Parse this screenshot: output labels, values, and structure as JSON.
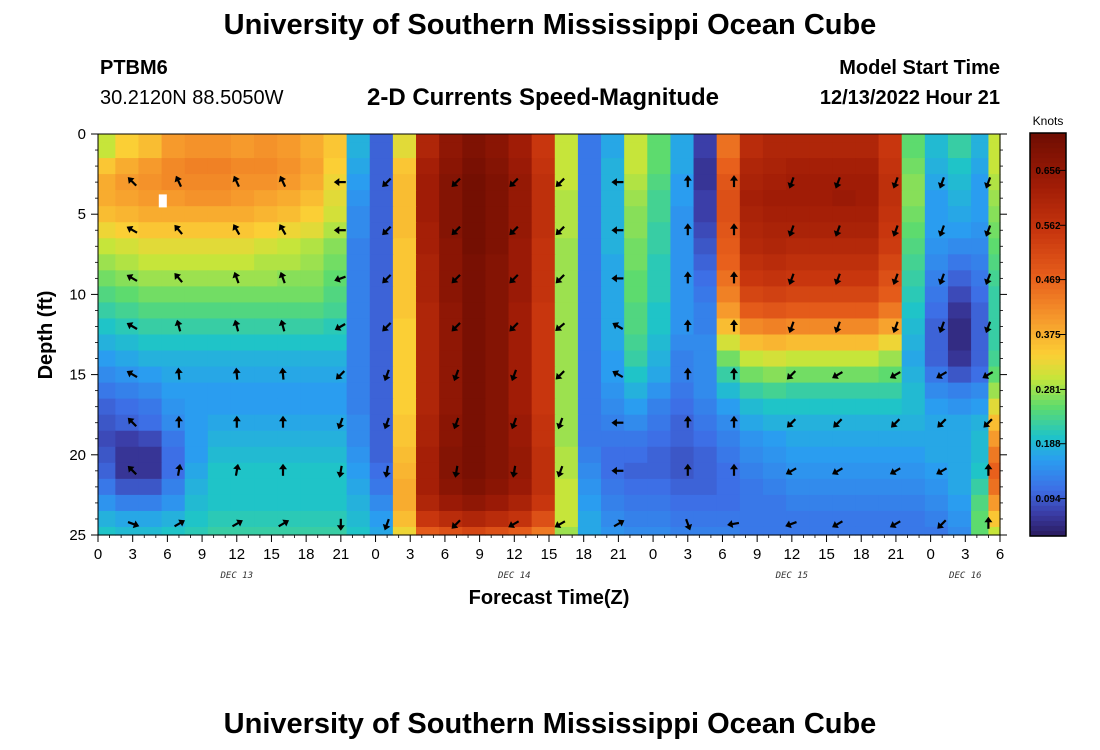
{
  "header": {
    "title": "University of Southern Mississippi Ocean Cube",
    "station_id": "PTBM6",
    "coordinates": "30.2120N  88.5050W",
    "subtitle": "2-D Currents Speed-Magnitude",
    "model_start_label": "Model Start Time",
    "model_start_value": "12/13/2022 Hour 21"
  },
  "footer": {
    "title": "University of Southern Mississippi Ocean Cube"
  },
  "colors": {
    "arrow": "#000000",
    "marker": "#ffffff"
  },
  "chart_data": {
    "type": "heatmap",
    "title": "2-D Currents Speed-Magnitude",
    "xlabel": "Forecast Time(Z)",
    "ylabel": "Depth (ft)",
    "x_ticks": [
      "0",
      "3",
      "6",
      "9",
      "12",
      "15",
      "18",
      "21",
      "0",
      "3",
      "6",
      "9",
      "12",
      "15",
      "18",
      "21",
      "0",
      "3",
      "6",
      "9",
      "12",
      "15",
      "18",
      "21",
      "0",
      "3",
      "6"
    ],
    "x_range_hours": [
      0,
      78
    ],
    "y_ticks": [
      "0",
      "5",
      "10",
      "15",
      "20",
      "25"
    ],
    "ylim_ft": [
      0,
      25
    ],
    "date_labels": [
      {
        "text": "DEC 13",
        "hour": 12
      },
      {
        "text": "DEC 14",
        "hour": 36
      },
      {
        "text": "DEC 15",
        "hour": 60
      },
      {
        "text": "DEC 16",
        "hour": 75
      }
    ],
    "colorbar": {
      "unit": "Knots",
      "ticks": [
        "0.656",
        "0.562",
        "0.469",
        "0.375",
        "0.281",
        "0.188",
        "0.094"
      ],
      "tick_values": [
        0.656,
        0.562,
        0.469,
        0.375,
        0.281,
        0.188,
        0.094
      ],
      "range": [
        0.03,
        0.72
      ]
    },
    "column_hours": [
      0.5,
      2.5,
      4.5,
      6.5,
      8.5,
      10.5,
      12.5,
      14.5,
      16.5,
      18.5,
      20.5,
      22.5,
      24.5,
      26.5,
      28.5,
      30.5,
      32.5,
      34.5,
      36.5,
      38.5,
      40.5,
      42.5,
      44.5,
      46.5,
      48.5,
      50.5,
      52.5,
      54.5,
      56.5,
      58.5,
      60.5,
      62.5,
      64.5,
      66.5,
      68.5,
      70.5,
      72.5,
      74.5,
      76.5,
      77.5
    ],
    "depth_ft": [
      0,
      1,
      2,
      3,
      4,
      5,
      6,
      7,
      8,
      9,
      10,
      11,
      12,
      13,
      14,
      15,
      16,
      17,
      18,
      19,
      20,
      21,
      22,
      23,
      24,
      25
    ],
    "speed_knots": [
      [
        0.3,
        0.34,
        0.36,
        0.4,
        0.41,
        0.41,
        0.4,
        0.41,
        0.4,
        0.38,
        0.35,
        0.18,
        0.1,
        0.32,
        0.6,
        0.66,
        0.69,
        0.67,
        0.63,
        0.55,
        0.3,
        0.12,
        0.17,
        0.3,
        0.25,
        0.17,
        0.07,
        0.45,
        0.58,
        0.6,
        0.6,
        0.6,
        0.6,
        0.6,
        0.55,
        0.25,
        0.19,
        0.22,
        0.18,
        0.3
      ],
      [
        0.3,
        0.34,
        0.36,
        0.4,
        0.41,
        0.41,
        0.4,
        0.41,
        0.4,
        0.38,
        0.35,
        0.18,
        0.1,
        0.32,
        0.6,
        0.66,
        0.69,
        0.67,
        0.63,
        0.55,
        0.3,
        0.12,
        0.17,
        0.3,
        0.25,
        0.17,
        0.07,
        0.45,
        0.58,
        0.6,
        0.6,
        0.6,
        0.6,
        0.6,
        0.55,
        0.25,
        0.19,
        0.22,
        0.18,
        0.3
      ],
      [
        0.35,
        0.38,
        0.4,
        0.42,
        0.43,
        0.43,
        0.42,
        0.42,
        0.41,
        0.39,
        0.34,
        0.17,
        0.1,
        0.35,
        0.62,
        0.67,
        0.7,
        0.68,
        0.64,
        0.56,
        0.3,
        0.12,
        0.18,
        0.3,
        0.25,
        0.17,
        0.06,
        0.47,
        0.6,
        0.61,
        0.62,
        0.62,
        0.62,
        0.62,
        0.56,
        0.26,
        0.18,
        0.2,
        0.17,
        0.3
      ],
      [
        0.38,
        0.4,
        0.41,
        0.42,
        0.42,
        0.42,
        0.41,
        0.41,
        0.4,
        0.38,
        0.33,
        0.16,
        0.1,
        0.36,
        0.63,
        0.68,
        0.71,
        0.69,
        0.65,
        0.57,
        0.3,
        0.12,
        0.18,
        0.29,
        0.24,
        0.16,
        0.06,
        0.49,
        0.61,
        0.62,
        0.63,
        0.63,
        0.63,
        0.63,
        0.57,
        0.27,
        0.17,
        0.19,
        0.16,
        0.29
      ],
      [
        0.38,
        0.39,
        0.4,
        0.4,
        0.41,
        0.41,
        0.4,
        0.39,
        0.38,
        0.36,
        0.32,
        0.15,
        0.1,
        0.36,
        0.63,
        0.68,
        0.71,
        0.69,
        0.65,
        0.57,
        0.29,
        0.12,
        0.18,
        0.28,
        0.23,
        0.16,
        0.07,
        0.5,
        0.62,
        0.63,
        0.63,
        0.63,
        0.64,
        0.63,
        0.57,
        0.27,
        0.16,
        0.18,
        0.16,
        0.28
      ],
      [
        0.36,
        0.37,
        0.38,
        0.38,
        0.38,
        0.38,
        0.38,
        0.37,
        0.36,
        0.34,
        0.31,
        0.14,
        0.1,
        0.36,
        0.63,
        0.68,
        0.71,
        0.69,
        0.65,
        0.57,
        0.29,
        0.12,
        0.18,
        0.27,
        0.23,
        0.15,
        0.07,
        0.5,
        0.61,
        0.62,
        0.62,
        0.62,
        0.62,
        0.62,
        0.56,
        0.26,
        0.16,
        0.17,
        0.16,
        0.27
      ],
      [
        0.33,
        0.34,
        0.35,
        0.35,
        0.35,
        0.35,
        0.35,
        0.34,
        0.33,
        0.32,
        0.29,
        0.14,
        0.1,
        0.36,
        0.62,
        0.68,
        0.71,
        0.69,
        0.65,
        0.57,
        0.29,
        0.12,
        0.18,
        0.27,
        0.22,
        0.15,
        0.08,
        0.49,
        0.6,
        0.61,
        0.61,
        0.61,
        0.61,
        0.61,
        0.55,
        0.25,
        0.16,
        0.16,
        0.15,
        0.26
      ],
      [
        0.3,
        0.31,
        0.32,
        0.32,
        0.32,
        0.32,
        0.32,
        0.31,
        0.3,
        0.29,
        0.27,
        0.13,
        0.1,
        0.35,
        0.62,
        0.67,
        0.71,
        0.69,
        0.64,
        0.56,
        0.28,
        0.12,
        0.18,
        0.26,
        0.22,
        0.15,
        0.09,
        0.48,
        0.59,
        0.6,
        0.59,
        0.59,
        0.59,
        0.59,
        0.54,
        0.24,
        0.15,
        0.14,
        0.14,
        0.25
      ],
      [
        0.28,
        0.29,
        0.3,
        0.3,
        0.3,
        0.3,
        0.3,
        0.29,
        0.29,
        0.28,
        0.26,
        0.13,
        0.1,
        0.35,
        0.61,
        0.67,
        0.7,
        0.68,
        0.64,
        0.56,
        0.28,
        0.12,
        0.17,
        0.26,
        0.21,
        0.15,
        0.1,
        0.47,
        0.57,
        0.58,
        0.57,
        0.57,
        0.57,
        0.57,
        0.52,
        0.23,
        0.14,
        0.12,
        0.13,
        0.24
      ],
      [
        0.26,
        0.27,
        0.28,
        0.28,
        0.28,
        0.28,
        0.28,
        0.28,
        0.27,
        0.27,
        0.25,
        0.13,
        0.1,
        0.35,
        0.61,
        0.67,
        0.7,
        0.68,
        0.64,
        0.56,
        0.28,
        0.12,
        0.17,
        0.25,
        0.21,
        0.15,
        0.11,
        0.45,
        0.55,
        0.56,
        0.55,
        0.55,
        0.55,
        0.55,
        0.5,
        0.22,
        0.13,
        0.1,
        0.12,
        0.23
      ],
      [
        0.24,
        0.25,
        0.26,
        0.26,
        0.26,
        0.26,
        0.26,
        0.26,
        0.26,
        0.26,
        0.24,
        0.13,
        0.1,
        0.35,
        0.61,
        0.67,
        0.7,
        0.68,
        0.64,
        0.56,
        0.28,
        0.12,
        0.17,
        0.25,
        0.21,
        0.15,
        0.12,
        0.43,
        0.52,
        0.53,
        0.52,
        0.52,
        0.52,
        0.52,
        0.48,
        0.21,
        0.12,
        0.08,
        0.11,
        0.22
      ],
      [
        0.22,
        0.23,
        0.24,
        0.24,
        0.24,
        0.24,
        0.24,
        0.24,
        0.24,
        0.24,
        0.23,
        0.13,
        0.1,
        0.35,
        0.6,
        0.66,
        0.7,
        0.68,
        0.63,
        0.55,
        0.28,
        0.12,
        0.17,
        0.24,
        0.2,
        0.15,
        0.13,
        0.4,
        0.48,
        0.49,
        0.48,
        0.48,
        0.48,
        0.48,
        0.44,
        0.2,
        0.11,
        0.06,
        0.1,
        0.22
      ],
      [
        0.2,
        0.21,
        0.22,
        0.22,
        0.22,
        0.22,
        0.22,
        0.22,
        0.22,
        0.22,
        0.21,
        0.13,
        0.1,
        0.34,
        0.6,
        0.66,
        0.7,
        0.68,
        0.63,
        0.55,
        0.28,
        0.12,
        0.17,
        0.24,
        0.2,
        0.15,
        0.13,
        0.36,
        0.42,
        0.43,
        0.42,
        0.42,
        0.42,
        0.42,
        0.39,
        0.19,
        0.1,
        0.05,
        0.1,
        0.22
      ],
      [
        0.18,
        0.19,
        0.2,
        0.2,
        0.2,
        0.2,
        0.2,
        0.2,
        0.2,
        0.2,
        0.2,
        0.13,
        0.1,
        0.34,
        0.6,
        0.66,
        0.7,
        0.68,
        0.63,
        0.55,
        0.28,
        0.12,
        0.17,
        0.23,
        0.19,
        0.14,
        0.14,
        0.31,
        0.36,
        0.37,
        0.36,
        0.36,
        0.36,
        0.36,
        0.33,
        0.18,
        0.1,
        0.05,
        0.1,
        0.22
      ],
      [
        0.16,
        0.17,
        0.18,
        0.18,
        0.18,
        0.18,
        0.18,
        0.18,
        0.18,
        0.18,
        0.18,
        0.13,
        0.1,
        0.34,
        0.6,
        0.66,
        0.7,
        0.68,
        0.63,
        0.55,
        0.28,
        0.12,
        0.16,
        0.22,
        0.18,
        0.13,
        0.14,
        0.26,
        0.3,
        0.31,
        0.3,
        0.3,
        0.3,
        0.3,
        0.28,
        0.17,
        0.1,
        0.06,
        0.1,
        0.23
      ],
      [
        0.14,
        0.15,
        0.16,
        0.17,
        0.17,
        0.17,
        0.17,
        0.17,
        0.17,
        0.17,
        0.17,
        0.13,
        0.1,
        0.34,
        0.6,
        0.66,
        0.7,
        0.68,
        0.63,
        0.55,
        0.28,
        0.12,
        0.16,
        0.2,
        0.17,
        0.13,
        0.14,
        0.22,
        0.26,
        0.27,
        0.26,
        0.26,
        0.26,
        0.26,
        0.25,
        0.18,
        0.12,
        0.09,
        0.11,
        0.25
      ],
      [
        0.12,
        0.13,
        0.14,
        0.16,
        0.16,
        0.16,
        0.16,
        0.16,
        0.16,
        0.16,
        0.16,
        0.13,
        0.1,
        0.34,
        0.6,
        0.66,
        0.7,
        0.68,
        0.63,
        0.55,
        0.28,
        0.12,
        0.15,
        0.18,
        0.15,
        0.12,
        0.14,
        0.19,
        0.22,
        0.23,
        0.22,
        0.22,
        0.22,
        0.22,
        0.22,
        0.19,
        0.14,
        0.13,
        0.14,
        0.28
      ],
      [
        0.1,
        0.11,
        0.12,
        0.15,
        0.16,
        0.16,
        0.16,
        0.16,
        0.16,
        0.16,
        0.16,
        0.13,
        0.1,
        0.34,
        0.6,
        0.66,
        0.7,
        0.68,
        0.63,
        0.55,
        0.28,
        0.12,
        0.14,
        0.16,
        0.13,
        0.11,
        0.13,
        0.16,
        0.19,
        0.2,
        0.2,
        0.2,
        0.2,
        0.2,
        0.2,
        0.19,
        0.16,
        0.15,
        0.16,
        0.32
      ],
      [
        0.09,
        0.1,
        0.11,
        0.14,
        0.16,
        0.17,
        0.17,
        0.17,
        0.17,
        0.17,
        0.17,
        0.14,
        0.1,
        0.35,
        0.61,
        0.67,
        0.7,
        0.68,
        0.64,
        0.56,
        0.28,
        0.12,
        0.13,
        0.14,
        0.12,
        0.1,
        0.12,
        0.14,
        0.17,
        0.18,
        0.18,
        0.18,
        0.18,
        0.18,
        0.18,
        0.18,
        0.17,
        0.17,
        0.18,
        0.36
      ],
      [
        0.08,
        0.07,
        0.08,
        0.12,
        0.16,
        0.18,
        0.18,
        0.18,
        0.18,
        0.18,
        0.18,
        0.14,
        0.1,
        0.35,
        0.61,
        0.67,
        0.7,
        0.68,
        0.64,
        0.56,
        0.28,
        0.12,
        0.12,
        0.12,
        0.11,
        0.1,
        0.11,
        0.13,
        0.15,
        0.16,
        0.17,
        0.17,
        0.17,
        0.17,
        0.17,
        0.17,
        0.17,
        0.17,
        0.19,
        0.4
      ],
      [
        0.09,
        0.06,
        0.06,
        0.11,
        0.16,
        0.19,
        0.19,
        0.19,
        0.19,
        0.19,
        0.19,
        0.15,
        0.1,
        0.36,
        0.62,
        0.68,
        0.7,
        0.68,
        0.65,
        0.57,
        0.29,
        0.13,
        0.11,
        0.11,
        0.1,
        0.09,
        0.1,
        0.12,
        0.14,
        0.15,
        0.16,
        0.16,
        0.16,
        0.16,
        0.16,
        0.16,
        0.17,
        0.17,
        0.19,
        0.44
      ],
      [
        0.1,
        0.06,
        0.06,
        0.11,
        0.17,
        0.2,
        0.2,
        0.2,
        0.2,
        0.2,
        0.2,
        0.16,
        0.11,
        0.37,
        0.62,
        0.68,
        0.7,
        0.68,
        0.65,
        0.57,
        0.29,
        0.14,
        0.11,
        0.1,
        0.1,
        0.09,
        0.1,
        0.11,
        0.13,
        0.14,
        0.15,
        0.15,
        0.15,
        0.15,
        0.15,
        0.15,
        0.16,
        0.17,
        0.2,
        0.47
      ],
      [
        0.12,
        0.09,
        0.09,
        0.13,
        0.18,
        0.2,
        0.2,
        0.2,
        0.2,
        0.2,
        0.2,
        0.17,
        0.12,
        0.38,
        0.62,
        0.67,
        0.69,
        0.67,
        0.64,
        0.57,
        0.3,
        0.15,
        0.12,
        0.11,
        0.11,
        0.1,
        0.1,
        0.11,
        0.12,
        0.13,
        0.14,
        0.14,
        0.14,
        0.14,
        0.14,
        0.14,
        0.15,
        0.17,
        0.22,
        0.45
      ],
      [
        0.15,
        0.13,
        0.13,
        0.15,
        0.19,
        0.2,
        0.2,
        0.2,
        0.2,
        0.2,
        0.2,
        0.18,
        0.14,
        0.38,
        0.6,
        0.64,
        0.66,
        0.64,
        0.61,
        0.55,
        0.3,
        0.16,
        0.13,
        0.12,
        0.12,
        0.11,
        0.11,
        0.11,
        0.12,
        0.12,
        0.13,
        0.13,
        0.13,
        0.13,
        0.13,
        0.13,
        0.14,
        0.16,
        0.24,
        0.4
      ],
      [
        0.18,
        0.17,
        0.17,
        0.18,
        0.2,
        0.21,
        0.21,
        0.21,
        0.21,
        0.21,
        0.21,
        0.19,
        0.16,
        0.36,
        0.55,
        0.58,
        0.6,
        0.58,
        0.56,
        0.5,
        0.3,
        0.17,
        0.14,
        0.13,
        0.13,
        0.12,
        0.12,
        0.12,
        0.12,
        0.12,
        0.12,
        0.12,
        0.12,
        0.12,
        0.12,
        0.12,
        0.13,
        0.15,
        0.25,
        0.35
      ],
      [
        0.2,
        0.19,
        0.19,
        0.2,
        0.21,
        0.22,
        0.22,
        0.22,
        0.22,
        0.22,
        0.22,
        0.2,
        0.17,
        0.33,
        0.48,
        0.5,
        0.52,
        0.5,
        0.48,
        0.44,
        0.28,
        0.17,
        0.15,
        0.14,
        0.14,
        0.13,
        0.13,
        0.13,
        0.12,
        0.12,
        0.12,
        0.12,
        0.12,
        0.12,
        0.12,
        0.12,
        0.12,
        0.14,
        0.25,
        0.3
      ]
    ],
    "arrow_depths_ft": [
      3,
      6,
      9,
      12,
      15,
      18,
      21,
      24.3
    ],
    "arrow_times_h": [
      3,
      7,
      12,
      16,
      21,
      25,
      31,
      36,
      40,
      45,
      51,
      55,
      60,
      64,
      69,
      73,
      77
    ],
    "arrow_directions_deg": [
      [
        315,
        335,
        335,
        335,
        270,
        225,
        225,
        225,
        225,
        270,
        0,
        0,
        200,
        200,
        200,
        200,
        200
      ],
      [
        300,
        320,
        330,
        330,
        270,
        225,
        225,
        225,
        225,
        270,
        0,
        0,
        200,
        200,
        200,
        200,
        200
      ],
      [
        300,
        320,
        340,
        340,
        250,
        225,
        225,
        225,
        225,
        270,
        0,
        0,
        200,
        200,
        200,
        200,
        200
      ],
      [
        300,
        345,
        345,
        345,
        240,
        225,
        225,
        225,
        230,
        300,
        0,
        0,
        200,
        200,
        200,
        200,
        200
      ],
      [
        300,
        355,
        355,
        355,
        225,
        200,
        200,
        200,
        225,
        300,
        0,
        0,
        225,
        240,
        240,
        240,
        240
      ],
      [
        315,
        0,
        0,
        0,
        200,
        200,
        200,
        200,
        200,
        270,
        0,
        0,
        225,
        225,
        225,
        225,
        225
      ],
      [
        315,
        10,
        10,
        0,
        190,
        190,
        190,
        190,
        200,
        270,
        0,
        0,
        240,
        240,
        240,
        240,
        0
      ],
      [
        110,
        60,
        60,
        60,
        180,
        200,
        225,
        240,
        240,
        60,
        160,
        260,
        250,
        240,
        240,
        225,
        0
      ]
    ],
    "white_marker": {
      "hour": 5.6,
      "depth_ft": 4.2
    }
  }
}
